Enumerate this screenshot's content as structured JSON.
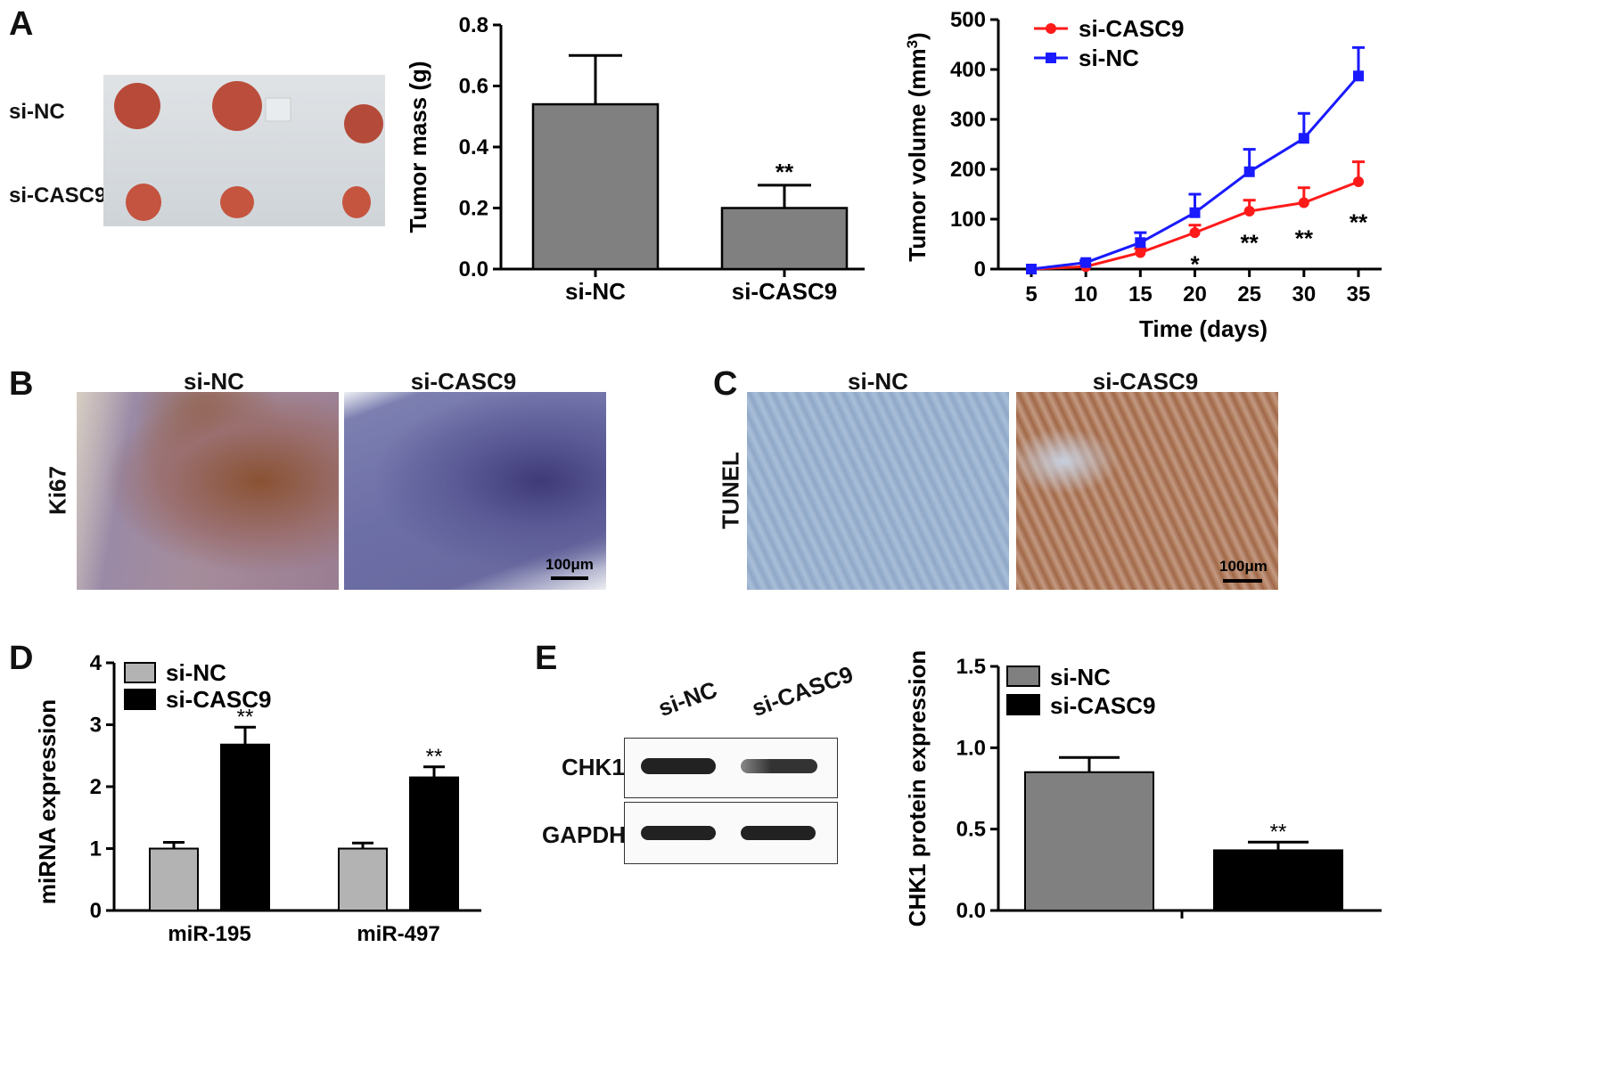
{
  "panel_labels": {
    "A": "A",
    "B": "B",
    "C": "C",
    "D": "D",
    "E": "E"
  },
  "panelA_photo": {
    "row1": "si-NC",
    "row2": "si-CASC9"
  },
  "panelB": {
    "col1": "si-NC",
    "col2": "si-CASC9",
    "row": "Ki67",
    "scale": "100μm"
  },
  "panelC": {
    "col1": "si-NC",
    "col2": "si-CASC9",
    "row": "TUNEL",
    "scale": "100μm"
  },
  "panelE_blot": {
    "lane1": "si-NC",
    "lane2": "si-CASC9",
    "row1": "CHK1",
    "row2": "GAPDH"
  },
  "colors": {
    "gray_bar": "#808080",
    "light_gray_bar": "#b3b3b3",
    "black_bar": "#000000",
    "red": "#ff1a1a",
    "blue": "#1a1aff"
  },
  "chart_data": [
    {
      "id": "tumor-mass",
      "type": "bar",
      "categories": [
        "si-NC",
        "si-CASC9"
      ],
      "values": [
        0.54,
        0.2
      ],
      "errors": [
        0.16,
        0.075
      ],
      "significance": [
        "",
        "**"
      ],
      "ylabel": "Tumor mass (g)",
      "ylim": [
        0,
        0.8
      ],
      "yticks": [
        "0.0",
        "0.2",
        "0.4",
        "0.6",
        "0.8"
      ]
    },
    {
      "id": "tumor-volume",
      "type": "line",
      "xlabel": "Time (days)",
      "ylabel": "Tumor volume (mm",
      "ylabel_sup": "3",
      "ylabel_close": ")",
      "xlim": [
        5,
        35
      ],
      "ylim": [
        0,
        500
      ],
      "x": [
        5,
        10,
        15,
        20,
        25,
        30,
        35
      ],
      "xticks": [
        "5",
        "10",
        "15",
        "20",
        "25",
        "30",
        "35"
      ],
      "yticks": [
        "0",
        "100",
        "200",
        "300",
        "400",
        "500"
      ],
      "legend": "top-left",
      "series": [
        {
          "name": "si-CASC9",
          "values": [
            0,
            5,
            33,
            73,
            116,
            133,
            175
          ],
          "errors": [
            0,
            3,
            8,
            15,
            22,
            30,
            40
          ]
        },
        {
          "name": "si-NC",
          "values": [
            0,
            13,
            53,
            113,
            195,
            262,
            387
          ],
          "errors": [
            0,
            4,
            20,
            37,
            45,
            50,
            57
          ]
        }
      ],
      "significance": [
        {
          "x": 20,
          "label": "*"
        },
        {
          "x": 25,
          "label": "**"
        },
        {
          "x": 30,
          "label": "**"
        },
        {
          "x": 35,
          "label": "**"
        }
      ]
    },
    {
      "id": "mirna-expression",
      "type": "bar",
      "ylabel": "miRNA expression",
      "ylim": [
        0,
        4
      ],
      "yticks": [
        "0",
        "1",
        "2",
        "3",
        "4"
      ],
      "categories": [
        "miR-195",
        "miR-497"
      ],
      "legend": "top-left",
      "series": [
        {
          "name": "si-NC",
          "values": [
            1.0,
            1.0
          ],
          "errors": [
            0.1,
            0.09
          ]
        },
        {
          "name": "si-CASC9",
          "values": [
            2.68,
            2.15
          ],
          "errors": [
            0.28,
            0.17
          ]
        }
      ],
      "significance": [
        "**",
        "**"
      ]
    },
    {
      "id": "chk1-protein",
      "type": "bar",
      "ylabel": "CHK1 protein expression",
      "ylim": [
        0,
        1.5
      ],
      "yticks": [
        "0.0",
        "0.5",
        "1.0",
        "1.5"
      ],
      "legend": "top-left",
      "series": [
        {
          "name": "si-NC",
          "values": [
            0.85
          ],
          "errors": [
            0.09
          ]
        },
        {
          "name": "si-CASC9",
          "values": [
            0.37
          ],
          "errors": [
            0.05
          ]
        }
      ],
      "significance": [
        "",
        "**"
      ]
    }
  ]
}
